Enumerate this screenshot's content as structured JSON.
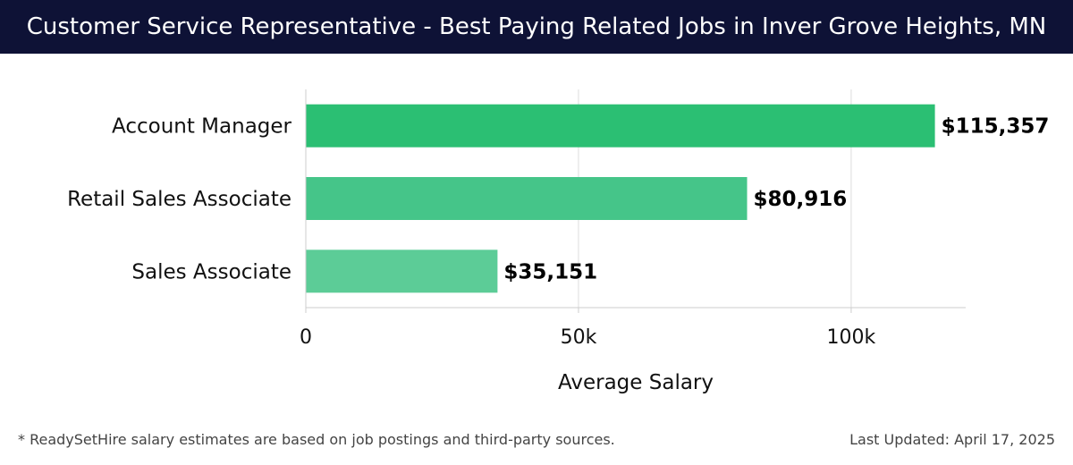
{
  "header": {
    "title": "Customer Service Representative - Best Paying Related Jobs in Inver Grove Heights, MN"
  },
  "colors": {
    "header_bg": "#0e1236",
    "bar_colors": [
      "#2bbf73",
      "#45c589",
      "#5ccc97"
    ],
    "grid": "#dddddd"
  },
  "chart_data": {
    "type": "bar",
    "orientation": "horizontal",
    "categories": [
      "Account Manager",
      "Retail Sales Associate",
      "Sales Associate"
    ],
    "values": [
      115357,
      80916,
      35151
    ],
    "value_labels": [
      "$115,357",
      "$80,916",
      "$35,151"
    ],
    "xlabel": "Average Salary",
    "ylabel": "",
    "xlim": [
      0,
      121000
    ],
    "xticks": [
      0,
      50000,
      100000
    ],
    "xtick_labels": [
      "0",
      "50k",
      "100k"
    ],
    "grid": true
  },
  "footer": {
    "note": "* ReadySetHire salary estimates are based on job postings and third-party sources.",
    "updated": "Last Updated: April 17, 2025"
  }
}
